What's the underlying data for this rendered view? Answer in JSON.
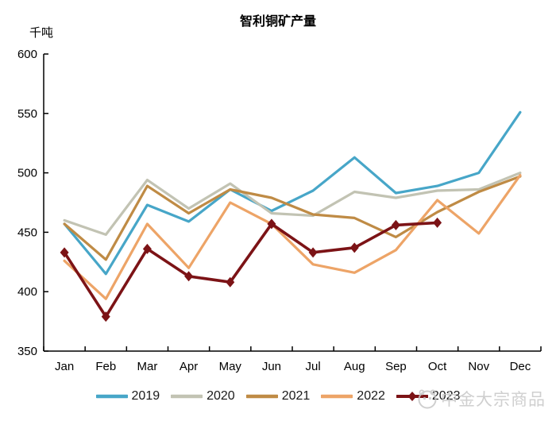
{
  "chart_data": {
    "type": "line",
    "title": "智利铜矿产量",
    "unit_label": "千吨",
    "categories": [
      "Jan",
      "Feb",
      "Mar",
      "Apr",
      "May",
      "Jun",
      "Jul",
      "Aug",
      "Sep",
      "Oct",
      "Nov",
      "Dec"
    ],
    "ylim": [
      350,
      600
    ],
    "ytick_step": 50,
    "ytick_labels": [
      "600",
      "550",
      "500",
      "450",
      "400",
      "350"
    ],
    "grid": false,
    "legend_position": "bottom",
    "series": [
      {
        "name": "2019",
        "color": "#47A6C8",
        "marker": "none",
        "values": [
          457,
          415,
          473,
          459,
          486,
          468,
          485,
          513,
          483,
          489,
          500,
          551
        ]
      },
      {
        "name": "2020",
        "color": "#C2C3B3",
        "marker": "none",
        "values": [
          460,
          448,
          494,
          470,
          491,
          466,
          464,
          484,
          479,
          485,
          486,
          500
        ]
      },
      {
        "name": "2021",
        "color": "#BF8B45",
        "marker": "none",
        "values": [
          457,
          427,
          489,
          466,
          486,
          479,
          465,
          462,
          446,
          467,
          484,
          497
        ]
      },
      {
        "name": "2022",
        "color": "#EDA467",
        "marker": "none",
        "values": [
          426,
          394,
          457,
          420,
          475,
          457,
          423,
          416,
          435,
          477,
          449,
          498
        ]
      },
      {
        "name": "2023",
        "color": "#7C1316",
        "marker": "diamond",
        "values": [
          433,
          379,
          436,
          413,
          408,
          457,
          433,
          437,
          456,
          458,
          null,
          null
        ]
      }
    ]
  },
  "watermark": {
    "text": "中金大宗商品",
    "logo": "cicc-panda-logo"
  },
  "colors": {
    "axis": "#000000",
    "watermark": "#c7c7c7",
    "background": "#ffffff"
  }
}
